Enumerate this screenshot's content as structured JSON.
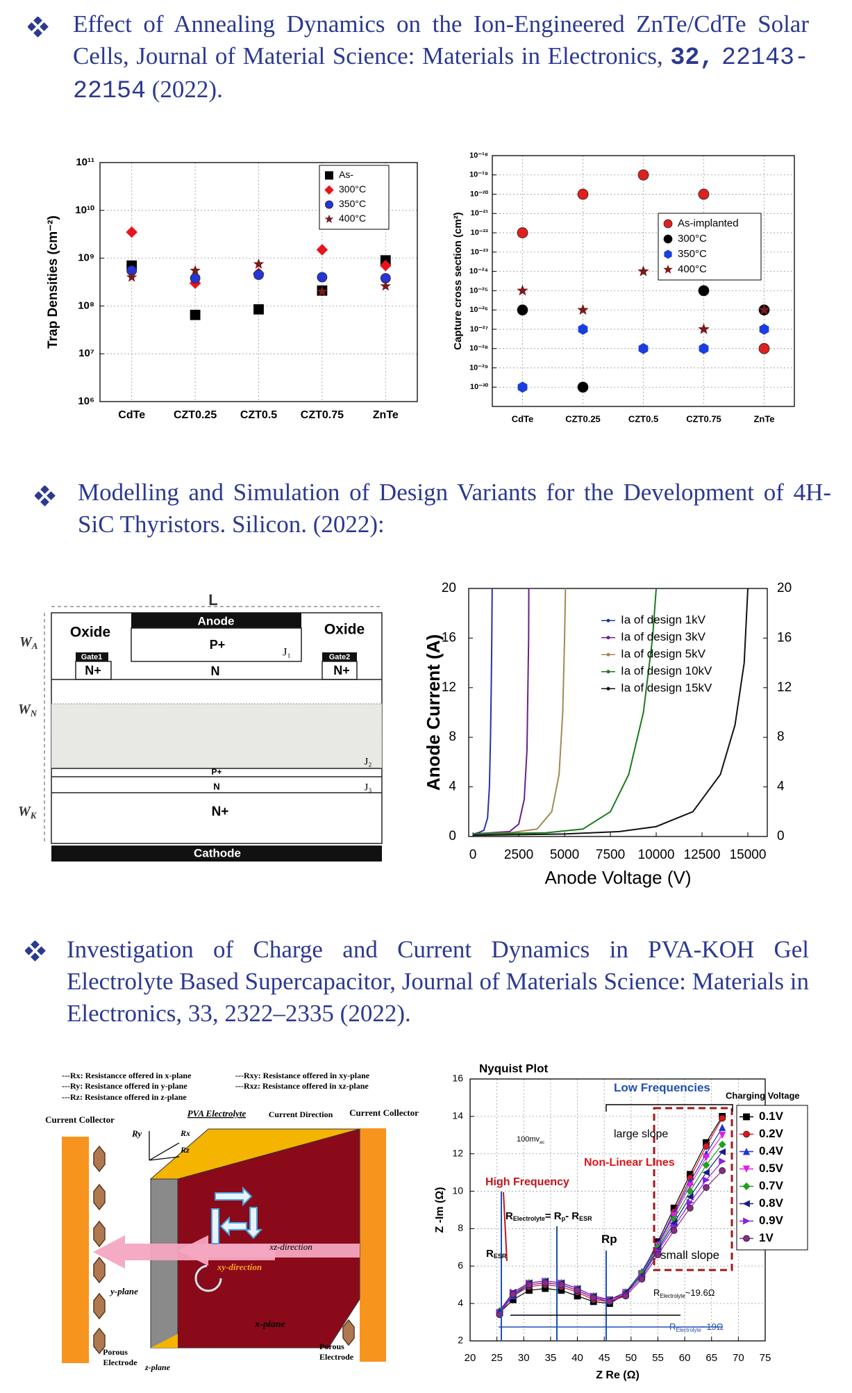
{
  "sections": [
    {
      "title": [
        "Effect of Annealing Dynamics on the Ion-Engineered ZnTe/CdTe Solar Cells, Journal of Material Science: Materials in Electronics,",
        "32,",
        "22143-22154",
        "(2022)."
      ]
    },
    {
      "title": [
        "Modelling and Simulation of Design Variants for the Development of 4H-SiC Thyristors. Silicon. (2022):"
      ]
    },
    {
      "title": [
        "Investigation of Charge and Current Dynamics in PVA-KOH Gel Electrolyte Based Supercapacitor, Journal of Materials Science: Materials in Electronics, 33, 2322–2335 (2022)."
      ]
    }
  ],
  "device_diagram": {
    "L": "L",
    "oxide_left": "Oxide",
    "anode": "Anode",
    "p_plus_top": "P+",
    "j1": "J₁",
    "gate1": "Gate1",
    "n_plus_left": "N+",
    "n_top": "N",
    "oxide_right": "Oxide",
    "gate2": "Gate2",
    "n_plus_right": "N+",
    "wa": {
      "text": "W",
      "sub": "A"
    },
    "wn": {
      "text": "W",
      "sub": "N"
    },
    "wk": {
      "text": "W",
      "sub": "K"
    },
    "j2": "J₂",
    "p_plus_mid": "P+",
    "n_mid": "N",
    "j3": "J₃",
    "n_plus_bottom": "N+",
    "cathode": "Cathode"
  },
  "supercapacitor_diagram": {
    "legend": [
      "---Rx: Resistancce offered in x-plane",
      "---Ry: Resistance offered in y-plane",
      "---Rz: Resistance offered in z-plane",
      "---Rxy: Resistance offered in xy-plane",
      "---Rxz: Resistance offered in xz-plane"
    ],
    "current_collector_left": "Current Collector",
    "pva_electrolyte": "PVA Electrolyte",
    "current_direction": "Current Direction",
    "current_collector_right": "Current Collector",
    "ry": "Ry",
    "rx": "Rx",
    "rz": "Rz",
    "xz_direction": "xz-direction",
    "xy_direction": "xy-direction",
    "y_plane": "y-plane",
    "x_plane": "x-plane",
    "porous_left": [
      "Porous",
      "Electrode"
    ],
    "z_plane": "z-plane",
    "porous_right": [
      "Porous",
      "Electrode"
    ]
  },
  "chart_data": [
    {
      "type": "scatter",
      "y_label": "Trap Densities (cm⁻²)",
      "categories": [
        "CdTe",
        "CZT0.25",
        "CZT0.5",
        "CZT0.75",
        "ZnTe"
      ],
      "log_y": true,
      "ylim": [
        1000000.0,
        100000000000.0
      ],
      "yticks": [
        {
          "value": 1000000.0,
          "label": "10⁶"
        },
        {
          "value": 10000000.0,
          "label": "10⁷"
        },
        {
          "value": 100000000.0,
          "label": "10⁸"
        },
        {
          "value": 1000000000.0,
          "label": "10⁹"
        },
        {
          "value": 10000000000.0,
          "label": "10¹⁰"
        },
        {
          "value": 100000000000.0,
          "label": "10¹¹"
        }
      ],
      "grid": true,
      "legend": "upper right",
      "series": [
        {
          "name": "As-",
          "color": "#000000",
          "marker": "square",
          "values": [
            700000000.0,
            65000000.0,
            85000000.0,
            210000000.0,
            900000000.0
          ]
        },
        {
          "name": "300°C",
          "color": "#e8141b",
          "marker": "diamond",
          "values": [
            3500000000.0,
            300000000.0,
            480000000.0,
            1500000000.0,
            700000000.0
          ]
        },
        {
          "name": "350°C",
          "color": "#2436d8",
          "marker": "circle",
          "values": [
            550000000.0,
            380000000.0,
            450000000.0,
            400000000.0,
            380000000.0
          ]
        },
        {
          "name": "400°C",
          "color": "#7a1a1a",
          "marker": "star",
          "values": [
            400000000.0,
            550000000.0,
            750000000.0,
            200000000.0,
            260000000.0
          ]
        }
      ]
    },
    {
      "type": "scatter",
      "y_label": "Capture cross section (cm²)",
      "categories": [
        "CdTe",
        "CZT0.25",
        "CZT0.5",
        "CZT0.75",
        "ZnTe"
      ],
      "log_y": true,
      "ylim": [
        1e-31,
        1e-18
      ],
      "yticks": [
        {
          "value": 1e-30,
          "label": "10⁻³⁰"
        },
        {
          "value": 1e-29,
          "label": "10⁻²⁹"
        },
        {
          "value": 1e-28,
          "label": "10⁻²⁸"
        },
        {
          "value": 1e-27,
          "label": "10⁻²⁷"
        },
        {
          "value": 1e-26,
          "label": "10⁻²⁶"
        },
        {
          "value": 1e-25,
          "label": "10⁻²⁵"
        },
        {
          "value": 1e-24,
          "label": "10⁻²⁴"
        },
        {
          "value": 1e-23,
          "label": "10⁻²³"
        },
        {
          "value": 1e-22,
          "label": "10⁻²²"
        },
        {
          "value": 1e-21,
          "label": "10⁻²¹"
        },
        {
          "value": 1e-20,
          "label": "10⁻²⁰"
        },
        {
          "value": 1e-19,
          "label": "10⁻¹⁹"
        },
        {
          "value": 1e-18,
          "label": "10⁻¹⁸"
        }
      ],
      "grid": true,
      "legend": "upper right",
      "series": [
        {
          "name": "As-implanted",
          "color": "#e02020",
          "marker": "circle",
          "values": [
            1e-22,
            1e-20,
            1e-19,
            1e-20,
            1e-28
          ]
        },
        {
          "name": "300°C",
          "color": "#000000",
          "marker": "circle",
          "values": [
            1e-26,
            1e-30,
            null,
            1e-25,
            1e-26
          ]
        },
        {
          "name": "350°C",
          "color": "#1a3ee0",
          "marker": "hexagon",
          "values": [
            1e-30,
            1e-27,
            1e-28,
            1e-28,
            1e-27
          ]
        },
        {
          "name": "400°C",
          "color": "#7a1a1a",
          "marker": "star",
          "values": [
            1e-25,
            1e-26,
            1e-24,
            1e-27,
            1e-26
          ]
        }
      ]
    },
    {
      "type": "line",
      "x_label": "Anode Voltage (V)",
      "y_label": "Anode Current (A)",
      "xlim": [
        -230,
        16060
      ],
      "xticks": [
        0,
        2500,
        5000,
        7500,
        10000,
        12500,
        15000
      ],
      "ylim": [
        0,
        20
      ],
      "yticks": [
        0,
        4,
        8,
        12,
        16,
        20
      ],
      "y2lim": [
        0,
        20
      ],
      "y2ticks": [
        0,
        4,
        8,
        12,
        16,
        20
      ],
      "legend": "upper right",
      "series": [
        {
          "name": "Ia of design 1kV",
          "color": "#2233aa",
          "x": [
            0,
            300,
            600,
            800,
            900,
            960,
            1000,
            1030,
            1050
          ],
          "values": [
            0.2,
            0.3,
            0.5,
            1.5,
            4,
            8,
            12,
            16,
            20
          ]
        },
        {
          "name": "Ia of design 3kV",
          "color": "#6a1f8a",
          "x": [
            0,
            1000,
            2000,
            2500,
            2800,
            2950,
            3000,
            3040,
            3050
          ],
          "values": [
            0.2,
            0.3,
            0.4,
            1,
            3,
            7,
            12,
            16,
            20
          ]
        },
        {
          "name": "Ia of design 5kV",
          "color": "#a08a50",
          "x": [
            0,
            2000,
            3500,
            4300,
            4700,
            4900,
            5000,
            5050
          ],
          "values": [
            0.2,
            0.3,
            0.6,
            2,
            5,
            10,
            16,
            20
          ]
        },
        {
          "name": "Ia of design 10kV",
          "color": "#1a7a1a",
          "x": [
            0,
            4000,
            6000,
            7500,
            8500,
            9300,
            9800,
            10000
          ],
          "values": [
            0.2,
            0.3,
            0.6,
            2,
            5,
            10,
            16,
            20
          ]
        },
        {
          "name": "Ia of design 15kV",
          "color": "#111111",
          "x": [
            0,
            5000,
            8000,
            10000,
            12000,
            13500,
            14300,
            14800,
            15000
          ],
          "values": [
            0.1,
            0.2,
            0.4,
            0.8,
            2,
            5,
            9,
            14,
            20
          ]
        }
      ]
    },
    {
      "type": "line",
      "title": "Nyquist Plot",
      "x_label": "Z Re (Ω)",
      "y_label": "Z -Im (Ω)",
      "xlim": [
        20,
        75
      ],
      "xticks": [
        20,
        25,
        30,
        35,
        40,
        45,
        50,
        55,
        60,
        65,
        70,
        75
      ],
      "ylim": [
        2,
        16
      ],
      "yticks": [
        2,
        4,
        6,
        8,
        10,
        12,
        14,
        16
      ],
      "grid": true,
      "legend": "upper right",
      "legend_title": "Charging Voltage",
      "x": [
        25.5,
        28,
        31,
        34,
        37,
        40,
        43,
        46,
        49,
        52,
        55,
        58,
        61,
        64,
        67
      ],
      "series": [
        {
          "name": "0.1V",
          "color": "#000000",
          "marker": "square",
          "values": [
            3.5,
            4.2,
            4.7,
            4.8,
            4.7,
            4.4,
            4.1,
            4.0,
            4.5,
            5.6,
            7.3,
            9.1,
            10.9,
            12.6,
            14.0
          ]
        },
        {
          "name": "0.2V",
          "color": "#e0141b",
          "marker": "circle",
          "values": [
            3.5,
            4.4,
            4.9,
            5.0,
            4.9,
            4.6,
            4.2,
            4.1,
            4.5,
            5.6,
            7.1,
            8.9,
            10.7,
            12.4,
            13.9
          ]
        },
        {
          "name": "0.4V",
          "color": "#1c33d6",
          "marker": "triangle-up",
          "values": [
            3.5,
            4.4,
            5.0,
            5.1,
            5.0,
            4.7,
            4.3,
            4.2,
            4.6,
            5.7,
            7.2,
            8.8,
            10.5,
            12.0,
            13.4
          ]
        },
        {
          "name": "0.5V",
          "color": "#e020e0",
          "marker": "triangle-down",
          "values": [
            3.5,
            4.5,
            5.0,
            5.1,
            5.0,
            4.7,
            4.3,
            4.2,
            4.6,
            5.6,
            7.1,
            8.7,
            10.3,
            11.8,
            13.0
          ]
        },
        {
          "name": "0.7V",
          "color": "#20a020",
          "marker": "diamond",
          "values": [
            3.6,
            4.5,
            5.1,
            5.2,
            5.1,
            4.8,
            4.4,
            4.2,
            4.6,
            5.6,
            7.0,
            8.5,
            10.0,
            11.4,
            12.5
          ]
        },
        {
          "name": "0.8V",
          "color": "#1a1a8a",
          "marker": "triangle-left",
          "values": [
            3.6,
            4.6,
            5.1,
            5.2,
            5.1,
            4.8,
            4.4,
            4.2,
            4.6,
            5.5,
            6.9,
            8.3,
            9.7,
            11.0,
            12.1
          ]
        },
        {
          "name": "0.9V",
          "color": "#8a20e0",
          "marker": "triangle-right",
          "values": [
            3.5,
            4.6,
            5.1,
            5.2,
            5.1,
            4.8,
            4.4,
            4.2,
            4.5,
            5.4,
            6.8,
            8.1,
            9.4,
            10.6,
            11.6
          ]
        },
        {
          "name": "1V",
          "color": "#8a2a8a",
          "marker": "circle",
          "values": [
            3.4,
            4.5,
            5.0,
            5.1,
            5.0,
            4.7,
            4.3,
            4.1,
            4.4,
            5.3,
            6.6,
            7.9,
            9.1,
            10.2,
            11.1
          ]
        }
      ],
      "annotations": [
        {
          "parts": [
            {
              "text": "Low Frequencies"
            }
          ]
        },
        {
          "parts": [
            {
              "text": "large slope"
            }
          ]
        },
        {
          "parts": [
            {
              "text": "Non-Linear Lines"
            }
          ]
        },
        {
          "parts": [
            {
              "text": "High Frequency"
            }
          ]
        },
        {
          "parts": [
            {
              "text": "100mv"
            },
            {
              "sub": "ac"
            }
          ]
        },
        {
          "parts": [
            {
              "text": "R"
            },
            {
              "sub": "Electrolyte"
            },
            {
              "text": "= R"
            },
            {
              "sub": "p"
            },
            {
              "text": "- R"
            },
            {
              "sub": "ESR"
            }
          ]
        },
        {
          "parts": [
            {
              "text": "Rp"
            }
          ]
        },
        {
          "parts": [
            {
              "text": "R"
            },
            {
              "sub": "ESR"
            }
          ]
        },
        {
          "parts": [
            {
              "text": "small slope"
            }
          ]
        },
        {
          "parts": [
            {
              "text": "R"
            },
            {
              "sub": "Electrolyte"
            },
            {
              "text": "~19.6Ω"
            }
          ]
        },
        {
          "parts": [
            {
              "text": "R"
            },
            {
              "sub": "Electrolyte"
            },
            {
              "text": "~19Ω"
            }
          ]
        }
      ]
    }
  ]
}
